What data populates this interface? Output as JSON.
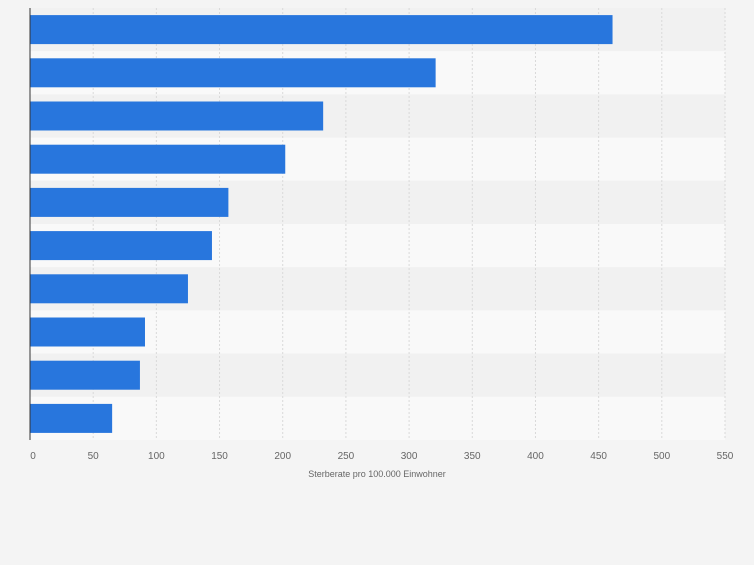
{
  "chart_data": {
    "type": "bar",
    "orientation": "horizontal",
    "categories": [
      "",
      "",
      "",
      "",
      "",
      "",
      "",
      "",
      "",
      ""
    ],
    "values": [
      461,
      321,
      232,
      202,
      157,
      144,
      125,
      91,
      87,
      65
    ],
    "xlabel": "Sterberate pro 100.000 Einwohner",
    "ylabel": "",
    "xlim": [
      0,
      550
    ],
    "xticks": [
      0,
      50,
      100,
      150,
      200,
      250,
      300,
      350,
      400,
      450,
      500,
      550
    ],
    "grid": "vertical",
    "legend": "none",
    "colors": {
      "bar": "#2876dd",
      "background": "#f4f4f4",
      "band_light": "#f9f9f9",
      "band_dark": "#f1f1f1",
      "grid": "#d9d9d9",
      "axis": "#333333",
      "text": "#666666"
    }
  }
}
